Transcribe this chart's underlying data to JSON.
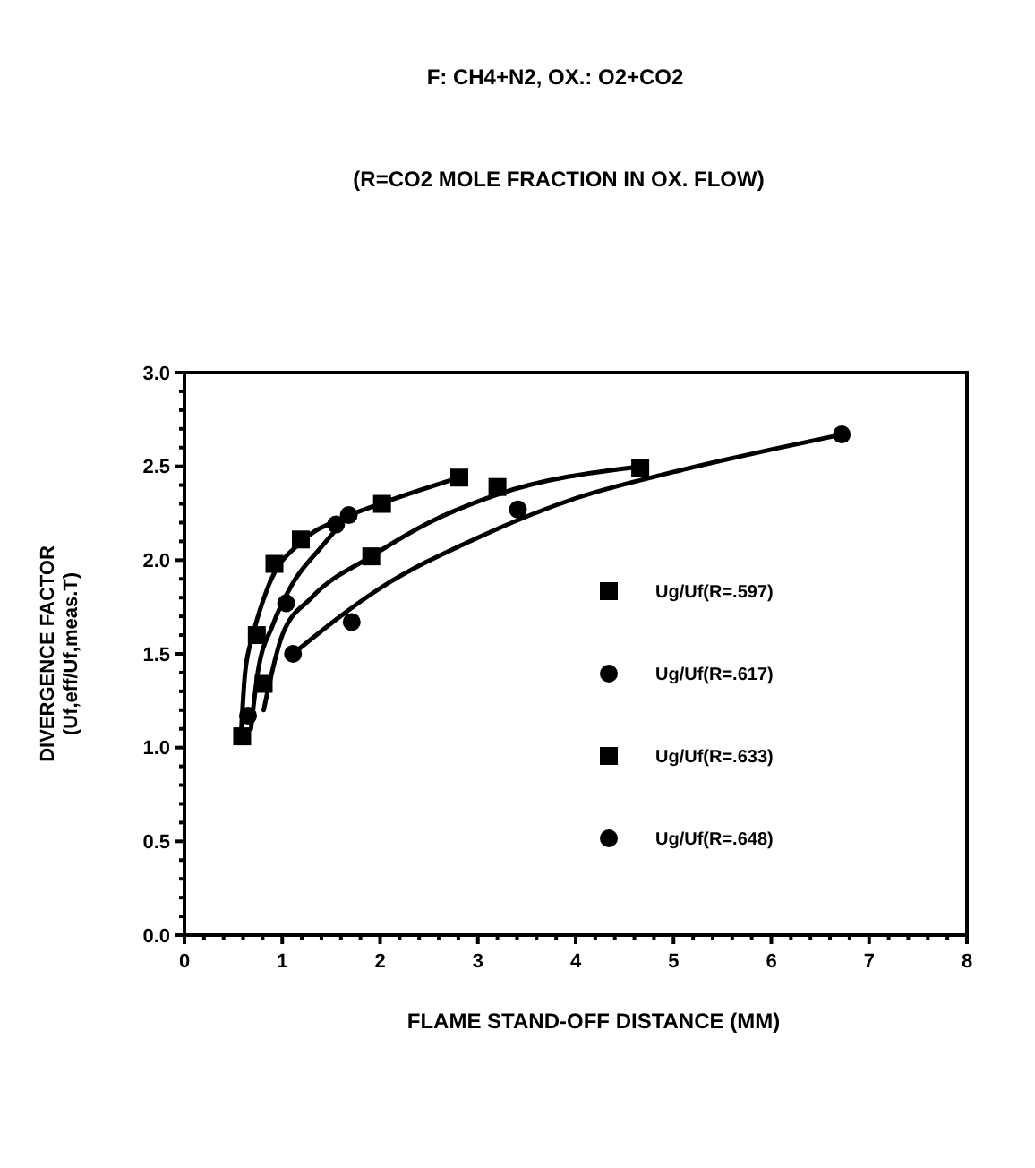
{
  "chart_data": {
    "type": "scatter",
    "title": "F: CH4+N2,   OX.: O2+CO2",
    "subtitle": "(R=CO2 MOLE FRACTION IN OX. FLOW)",
    "xlabel": "FLAME STAND-OFF DISTANCE (MM)",
    "ylabel": "DIVERGENCE FACTOR\n(Uf,eff/Uf,meas.T)",
    "xlim": [
      0,
      8
    ],
    "ylim": [
      0,
      3
    ],
    "xticks": [
      0,
      {
        "value": 0.2,
        "label": null
      },
      {
        "value": 0.4,
        "label": null
      },
      {
        "value": 0.6,
        "label": null
      },
      {
        "value": 0.8,
        "label": null
      },
      1,
      {
        "value": 1.2,
        "label": null
      },
      {
        "value": 1.4,
        "label": null
      },
      {
        "value": 1.6,
        "label": null
      },
      {
        "value": 1.8,
        "label": null
      },
      2,
      {
        "value": 2.2,
        "label": null
      },
      {
        "value": 2.4,
        "label": null
      },
      {
        "value": 2.6,
        "label": null
      },
      {
        "value": 2.8,
        "label": null
      },
      3,
      {
        "value": 3.2,
        "label": null
      },
      {
        "value": 3.4,
        "label": null
      },
      {
        "value": 3.6,
        "label": null
      },
      {
        "value": 3.8,
        "label": null
      },
      4,
      {
        "value": 4.2,
        "label": null
      },
      {
        "value": 4.4,
        "label": null
      },
      {
        "value": 4.6,
        "label": null
      },
      {
        "value": 4.8,
        "label": null
      },
      5,
      {
        "value": 5.2,
        "label": null
      },
      {
        "value": 5.4,
        "label": null
      },
      {
        "value": 5.6,
        "label": null
      },
      {
        "value": 5.8,
        "label": null
      },
      6,
      {
        "value": 6.2,
        "label": null
      },
      {
        "value": 6.4,
        "label": null
      },
      {
        "value": 6.6,
        "label": null
      },
      {
        "value": 6.8,
        "label": null
      },
      7,
      {
        "value": 7.2,
        "label": null
      },
      {
        "value": 7.4,
        "label": null
      },
      {
        "value": 7.6,
        "label": null
      },
      {
        "value": 7.8,
        "label": null
      },
      8
    ],
    "yticks": [
      {
        "value": 0,
        "label": "0.0"
      },
      {
        "value": 0.1,
        "label": null
      },
      {
        "value": 0.2,
        "label": null
      },
      {
        "value": 0.3,
        "label": null
      },
      {
        "value": 0.4,
        "label": null
      },
      0.5,
      {
        "value": 0.6,
        "label": null
      },
      {
        "value": 0.7,
        "label": null
      },
      {
        "value": 0.8,
        "label": null
      },
      {
        "value": 0.9,
        "label": null
      },
      {
        "value": 1,
        "label": "1.0"
      },
      {
        "value": 1.1,
        "label": null
      },
      {
        "value": 1.2,
        "label": null
      },
      {
        "value": 1.3,
        "label": null
      },
      {
        "value": 1.4,
        "label": null
      },
      1.5,
      {
        "value": 1.6,
        "label": null
      },
      {
        "value": 1.7,
        "label": null
      },
      {
        "value": 1.8,
        "label": null
      },
      {
        "value": 1.9,
        "label": null
      },
      {
        "value": 2,
        "label": "2.0"
      },
      {
        "value": 2.1,
        "label": null
      },
      {
        "value": 2.2,
        "label": null
      },
      {
        "value": 2.3,
        "label": null
      },
      {
        "value": 2.4,
        "label": null
      },
      2.5,
      {
        "value": 2.6,
        "label": null
      },
      {
        "value": 2.7,
        "label": null
      },
      {
        "value": 2.8,
        "label": null
      },
      {
        "value": 2.9,
        "label": null
      },
      {
        "value": 3,
        "label": "3.0"
      }
    ],
    "legend": "right",
    "grid": false,
    "series": [
      {
        "name": "Ug/Uf(R=.597)",
        "marker": "square",
        "color": "#000000",
        "x": [
          0.59,
          0.74,
          0.92,
          1.19,
          2.02,
          2.81
        ],
        "values": [
          1.06,
          1.6,
          1.98,
          2.11,
          2.3,
          2.44
        ]
      },
      {
        "name": "Ug/Uf(R=.617)",
        "marker": "circle",
        "color": "#000000",
        "x": [
          0.65,
          1.04,
          1.55,
          1.68
        ],
        "values": [
          1.17,
          1.77,
          2.19,
          2.24
        ]
      },
      {
        "name": "Ug/Uf(R=.633)",
        "marker": "square",
        "color": "#000000",
        "x": [
          0.81,
          1.91,
          3.2,
          4.66
        ],
        "values": [
          1.34,
          2.02,
          2.39,
          2.49
        ]
      },
      {
        "name": "Ug/Uf(R=.648)",
        "marker": "circle",
        "color": "#000000",
        "x": [
          1.11,
          1.71,
          3.41,
          6.72
        ],
        "values": [
          1.5,
          1.67,
          2.27,
          2.67
        ]
      },
      {
        "type": "line",
        "marker": "none",
        "color": "#000000",
        "x": [
          0.58,
          0.62,
          0.7,
          0.85,
          1.2,
          1.6,
          2.0,
          2.81
        ],
        "values": [
          1.08,
          1.4,
          1.6,
          1.85,
          2.1,
          2.22,
          2.3,
          2.44
        ]
      },
      {
        "type": "line",
        "marker": "none",
        "color": "#000000",
        "x": [
          0.68,
          0.75,
          0.9,
          1.1,
          1.4,
          1.68
        ],
        "values": [
          1.1,
          1.4,
          1.65,
          1.87,
          2.07,
          2.24
        ]
      },
      {
        "type": "line",
        "marker": "none",
        "color": "#000000",
        "x": [
          0.81,
          1.0,
          1.3,
          1.91,
          2.5,
          3.2,
          4.66
        ],
        "values": [
          1.2,
          1.6,
          1.8,
          2.02,
          2.2,
          2.35,
          2.5
        ]
      },
      {
        "type": "line",
        "marker": "none",
        "color": "#000000",
        "x": [
          1.11,
          2.0,
          3.0,
          4.0,
          5.0,
          6.0,
          6.72
        ],
        "values": [
          1.5,
          1.85,
          2.12,
          2.33,
          2.47,
          2.59,
          2.67
        ]
      }
    ]
  }
}
